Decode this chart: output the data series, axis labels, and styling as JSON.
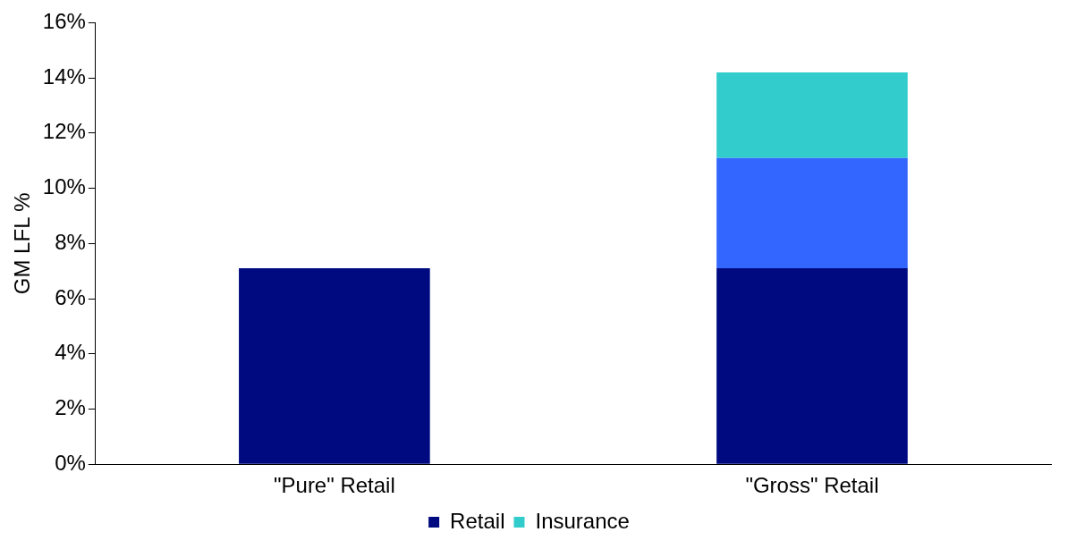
{
  "chart_data": {
    "type": "bar",
    "ylabel": "GM LFL %",
    "categories": [
      "\"Pure\" Retail",
      "\"Gross\" Retail"
    ],
    "stacked": true,
    "legend": "bottom",
    "grid": false,
    "ylim": [
      0,
      16
    ],
    "yticks": [
      {
        "value": 0,
        "label": "0%"
      },
      {
        "value": 2,
        "label": "2%"
      },
      {
        "value": 4,
        "label": "4%"
      },
      {
        "value": 6,
        "label": "6%"
      },
      {
        "value": 8,
        "label": "8%"
      },
      {
        "value": 10,
        "label": "10%"
      },
      {
        "value": 12,
        "label": "12%"
      },
      {
        "value": 14,
        "label": "14%"
      },
      {
        "value": 16,
        "label": "16%"
      }
    ],
    "series": [
      {
        "name": "Retail",
        "color": "#000a80",
        "values": [
          7.1,
          7.1
        ]
      },
      {
        "color": "#3366ff",
        "values": [
          null,
          4.0
        ]
      },
      {
        "name": "Insurance",
        "color": "#33cccc",
        "values": [
          null,
          3.1
        ]
      }
    ]
  }
}
